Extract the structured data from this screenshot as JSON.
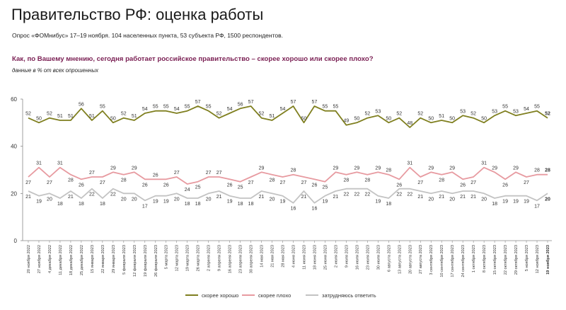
{
  "title": "Правительство РФ: оценка работы",
  "subtitle": "Опрос «ФОМнибус» 17–19 ноября. 104 населенных пункта, 53 субъекта РФ, 1500 респондентов.",
  "question": "Как, по Вашему мнению, сегодня работает российское правительство – скорее хорошо или скорее плохо?",
  "note": "данные в % от всех опрошенных",
  "colors": {
    "good": "#7f7f1f",
    "bad": "#e79aa0",
    "hard": "#c3c3c3",
    "axis": "#888888",
    "title": "#7a1f53"
  },
  "chart_data": {
    "type": "line",
    "ylim": [
      0,
      60
    ],
    "yticks": [
      0,
      20,
      40,
      60
    ],
    "x": [
      "20 ноября 2022",
      "27 ноября 2022",
      "4 декабря 2022",
      "11 декабря 2022",
      "18 декабря 2022",
      "25 декабря 2022",
      "15 января 2023",
      "22 января 2023",
      "29 января 2023",
      "5 февраля 2023",
      "12 февраля 2023",
      "19 февраля 2023",
      "26 февраля 2023",
      "5 марта 2023",
      "12 марта 2023",
      "19 марта 2023",
      "26 марта 2023",
      "2 апреля 2023",
      "9 апреля 2023",
      "16 апреля 2023",
      "23 апреля 2023",
      "30 апреля 2023",
      "14 мая 2023",
      "21 мая 2023",
      "28 мая 2023",
      "4 июня 2023",
      "11 июня 2023",
      "18 июня 2023",
      "25 июня 2023",
      "2 июля 2023",
      "9 июля 2023",
      "16 июля 2023",
      "23 июля 2023",
      "30 июля 2023",
      "6 августа 2023",
      "13 августа 2023",
      "20 августа 2023",
      "27 августа 2023",
      "3 сентября 2023",
      "10 сентября 2023",
      "17 сентября 2023",
      "24 сентября 2023",
      "1 октября 2023",
      "8 октября 2023",
      "15 октября 2023",
      "22 октября 2023",
      "29 октября 2023",
      "5 ноября 2023",
      "12 ноября 2023",
      "19 ноября 2023"
    ],
    "series": [
      {
        "name": "скорее хорошо",
        "key": "good",
        "values": [
          52,
          50,
          52,
          51,
          51,
          56,
          51,
          55,
          50,
          52,
          51,
          54,
          55,
          55,
          54,
          55,
          57,
          55,
          52,
          54,
          56,
          57,
          52,
          51,
          54,
          57,
          50,
          57,
          55,
          55,
          49,
          50,
          52,
          53,
          50,
          52,
          48,
          52,
          50,
          51,
          50,
          53,
          52,
          50,
          53,
          55,
          53,
          54,
          55,
          52
        ]
      },
      {
        "name": "скорее плохо",
        "key": "bad",
        "values": [
          27,
          31,
          27,
          31,
          28,
          26,
          27,
          27,
          29,
          28,
          29,
          26,
          26,
          26,
          27,
          24,
          25,
          27,
          27,
          26,
          25,
          27,
          29,
          28,
          27,
          28,
          27,
          26,
          25,
          29,
          28,
          29,
          28,
          29,
          28,
          26,
          31,
          27,
          29,
          28,
          29,
          26,
          27,
          31,
          29,
          26,
          29,
          27,
          28,
          28
        ]
      },
      {
        "name": "затрудняюсь ответить",
        "key": "hard",
        "values": [
          21,
          19,
          20,
          18,
          21,
          18,
          22,
          18,
          22,
          20,
          20,
          17,
          19,
          19,
          20,
          18,
          18,
          20,
          21,
          19,
          18,
          18,
          21,
          20,
          19,
          16,
          21,
          16,
          19,
          21,
          22,
          22,
          22,
          19,
          18,
          22,
          22,
          21,
          20,
          21,
          20,
          21,
          21,
          20,
          18,
          19,
          19,
          19,
          17,
          20
        ]
      }
    ]
  }
}
